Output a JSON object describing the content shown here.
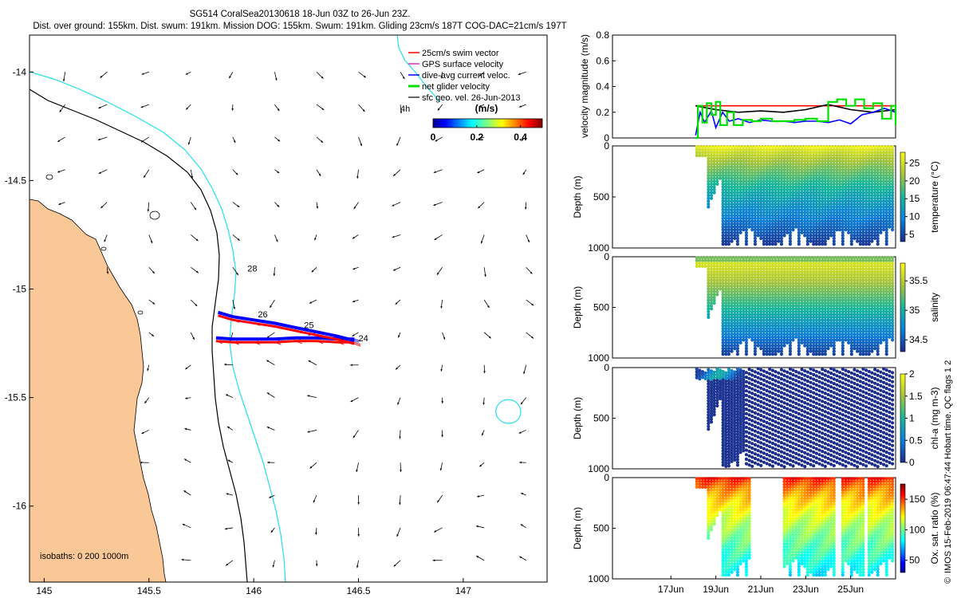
{
  "title": {
    "line1": "SG514 CoralSea20130618 18-Jun 03Z to 26-Jun 23Z.",
    "line2": "Dist. over ground: 155km. Dist. swum: 191km. Mission DOG: 155km. Swum: 191km. Gliding 23cm/s 187T COG-DAC=21cm/s 197T"
  },
  "colors": {
    "land": "#f9c896",
    "coastline": "#000000",
    "isobath_200": "#000000",
    "isobath_1000": "#22e0e8",
    "swim": "#ff0000",
    "gps": "#cc33cc",
    "dac": "#0000ff",
    "net": "#00e000",
    "geo": "#000000"
  },
  "chart_data": [
    {
      "type": "scatter",
      "name": "map",
      "xlim": [
        144.93,
        147.4
      ],
      "ylim": [
        -16.35,
        -13.83
      ],
      "xticks": [
        145,
        145.5,
        146,
        146.5,
        147
      ],
      "xtick_labels": [
        "145",
        "145.5",
        "146",
        "146.5",
        "147"
      ],
      "yticks": [
        -14,
        -14.5,
        -15,
        -15.5,
        -16
      ],
      "ytick_labels": [
        "-14",
        "-14.5",
        "-15",
        "-15.5",
        "-16"
      ],
      "legend": [
        {
          "label": "25cm/s swim vector",
          "key": "swim"
        },
        {
          "label": "GPS surface velocity",
          "key": "gps"
        },
        {
          "label": "dive-avg current veloc.",
          "key": "dac"
        },
        {
          "label": "net glider velocity",
          "key": "net"
        },
        {
          "label": "sfc geo. vel. 26-Jun-2013",
          "key": "geo"
        }
      ],
      "legend_note": "4h",
      "colorbar": {
        "label": "(m/s)",
        "ticks": [
          "0",
          "0.2",
          "0.4"
        ],
        "range": [
          0,
          0.5
        ]
      },
      "isobath_label": "isobaths: 0   200  1000m",
      "day_labels": [
        {
          "text": "28",
          "lon": 145.97,
          "lat": -14.92
        },
        {
          "text": "26",
          "lon": 146.02,
          "lat": -15.13
        },
        {
          "text": "25",
          "lon": 146.24,
          "lat": -15.18
        },
        {
          "text": "24",
          "lon": 146.5,
          "lat": -15.24
        }
      ],
      "track": {
        "outbound": [
          [
            145.82,
            -15.24
          ],
          [
            145.9,
            -15.245
          ],
          [
            146.0,
            -15.245
          ],
          [
            146.1,
            -15.245
          ],
          [
            146.2,
            -15.24
          ],
          [
            146.3,
            -15.24
          ],
          [
            146.4,
            -15.245
          ],
          [
            146.48,
            -15.245
          ]
        ],
        "return": [
          [
            146.48,
            -15.245
          ],
          [
            146.4,
            -15.225
          ],
          [
            146.3,
            -15.205
          ],
          [
            146.2,
            -15.185
          ],
          [
            146.1,
            -15.165
          ],
          [
            146.0,
            -15.15
          ],
          [
            145.9,
            -15.135
          ],
          [
            145.83,
            -15.115
          ]
        ]
      },
      "geo_grid": {
        "lons": [
          145.1,
          145.3,
          145.5,
          145.7,
          145.9,
          146.1,
          146.3,
          146.5,
          146.7,
          146.9,
          147.1,
          147.3
        ],
        "lats": [
          -14.0,
          -14.15,
          -14.3,
          -14.45,
          -14.6,
          -14.75,
          -14.9,
          -15.05,
          -15.2,
          -15.35,
          -15.5,
          -15.65,
          -15.8,
          -15.95,
          -16.1,
          -16.25
        ]
      }
    },
    {
      "type": "line",
      "name": "velocity",
      "ylabel": "velocity magnitude (m/s)",
      "ylim": [
        0,
        0.8
      ],
      "yticks": [
        "0",
        "0.2",
        "0.4",
        "0.6",
        "0.8"
      ],
      "xlim_days": [
        14.4,
        27.0
      ],
      "series": [
        {
          "name": "swim",
          "key": "swim",
          "x": [
            18.1,
            27.0
          ],
          "values": [
            0.25,
            0.25
          ]
        },
        {
          "name": "sfc geo",
          "key": "geo",
          "x": [
            18.1,
            19,
            20,
            21,
            22,
            23,
            24,
            25,
            26,
            27.0
          ],
          "values": [
            0.25,
            0.22,
            0.2,
            0.21,
            0.2,
            0.22,
            0.26,
            0.22,
            0.2,
            0.22
          ]
        },
        {
          "name": "dac",
          "key": "dac",
          "x": [
            18.1,
            18.3,
            18.5,
            18.8,
            19.0,
            19.3,
            19.6,
            20,
            20.5,
            21,
            21.5,
            22,
            22.5,
            23,
            23.5,
            24,
            24.5,
            25,
            25.5,
            26,
            26.5,
            27.0
          ],
          "values": [
            0.02,
            0.2,
            0.12,
            0.21,
            0.08,
            0.2,
            0.13,
            0.15,
            0.12,
            0.14,
            0.13,
            0.13,
            0.12,
            0.13,
            0.13,
            0.12,
            0.14,
            0.11,
            0.18,
            0.2,
            0.23,
            0.2
          ]
        },
        {
          "name": "net",
          "key": "net",
          "x": [
            18.1,
            18.2,
            18.4,
            18.6,
            18.8,
            19.0,
            19.2,
            19.5,
            19.8,
            20.2,
            20.6,
            21.0,
            21.5,
            22.0,
            22.5,
            23.0,
            23.5,
            24.0,
            24.4,
            24.8,
            25.2,
            25.6,
            26.0,
            26.4,
            26.8,
            27.0
          ],
          "values": [
            0.0,
            0.25,
            0.12,
            0.27,
            0.18,
            0.28,
            0.1,
            0.2,
            0.1,
            0.14,
            0.13,
            0.15,
            0.13,
            0.13,
            0.14,
            0.15,
            0.13,
            0.28,
            0.3,
            0.25,
            0.3,
            0.23,
            0.27,
            0.15,
            0.25,
            0.1
          ]
        }
      ]
    },
    {
      "type": "heatmap",
      "name": "temperature",
      "ylabel": "Depth (m)",
      "ylim": [
        0,
        1000
      ],
      "yticks": [
        "0",
        "500",
        "1000"
      ],
      "colorbar_label": "temperature (°C)",
      "crange": [
        3,
        28
      ],
      "cticks": [
        "5",
        "10",
        "15",
        "20",
        "25"
      ],
      "cbar_values": [
        5,
        10,
        15,
        20,
        25
      ],
      "profile": "temp"
    },
    {
      "type": "heatmap",
      "name": "salinity",
      "ylabel": "Depth (m)",
      "ylim": [
        0,
        1000
      ],
      "yticks": [
        "0",
        "500",
        "1000"
      ],
      "colorbar_label": "salinity",
      "crange": [
        34.3,
        35.8
      ],
      "cticks": [
        "34.5",
        "35",
        "35.5"
      ],
      "cbar_values": [
        34.5,
        35,
        35.5
      ],
      "profile": "sal"
    },
    {
      "type": "heatmap",
      "name": "chl",
      "ylabel": "Depth (m)",
      "ylim": [
        0,
        1000
      ],
      "yticks": [
        "0",
        "500",
        "1000"
      ],
      "colorbar_label": "chl-a (mg m-3)",
      "crange": [
        0,
        2
      ],
      "cticks": [
        "0",
        "0.5",
        "1",
        "1.5",
        "2"
      ],
      "cbar_values": [
        0,
        0.5,
        1,
        1.5,
        2
      ],
      "profile": "chl"
    },
    {
      "type": "heatmap",
      "name": "oxygen",
      "ylabel": "Depth (m)",
      "ylim": [
        0,
        1000
      ],
      "yticks": [
        "0",
        "500",
        "1000"
      ],
      "colorbar_label": "Ox. sat. ratio (%)",
      "crange": [
        30,
        175
      ],
      "cticks": [
        "50",
        "100",
        "150"
      ],
      "cbar_values": [
        50,
        100,
        150
      ],
      "profile": "oxy"
    }
  ],
  "time_axis": {
    "ticks": [
      {
        "day": 17,
        "label": "17Jun"
      },
      {
        "day": 19,
        "label": "19Jun"
      },
      {
        "day": 21,
        "label": "21Jun"
      },
      {
        "day": 23,
        "label": "23Jun"
      },
      {
        "day": 25,
        "label": "25Jun"
      }
    ]
  },
  "side_note": "IMOS 15-Feb-2019 06:47:44 Hobart time. QC flags 1  2",
  "copyright_sign": "©"
}
